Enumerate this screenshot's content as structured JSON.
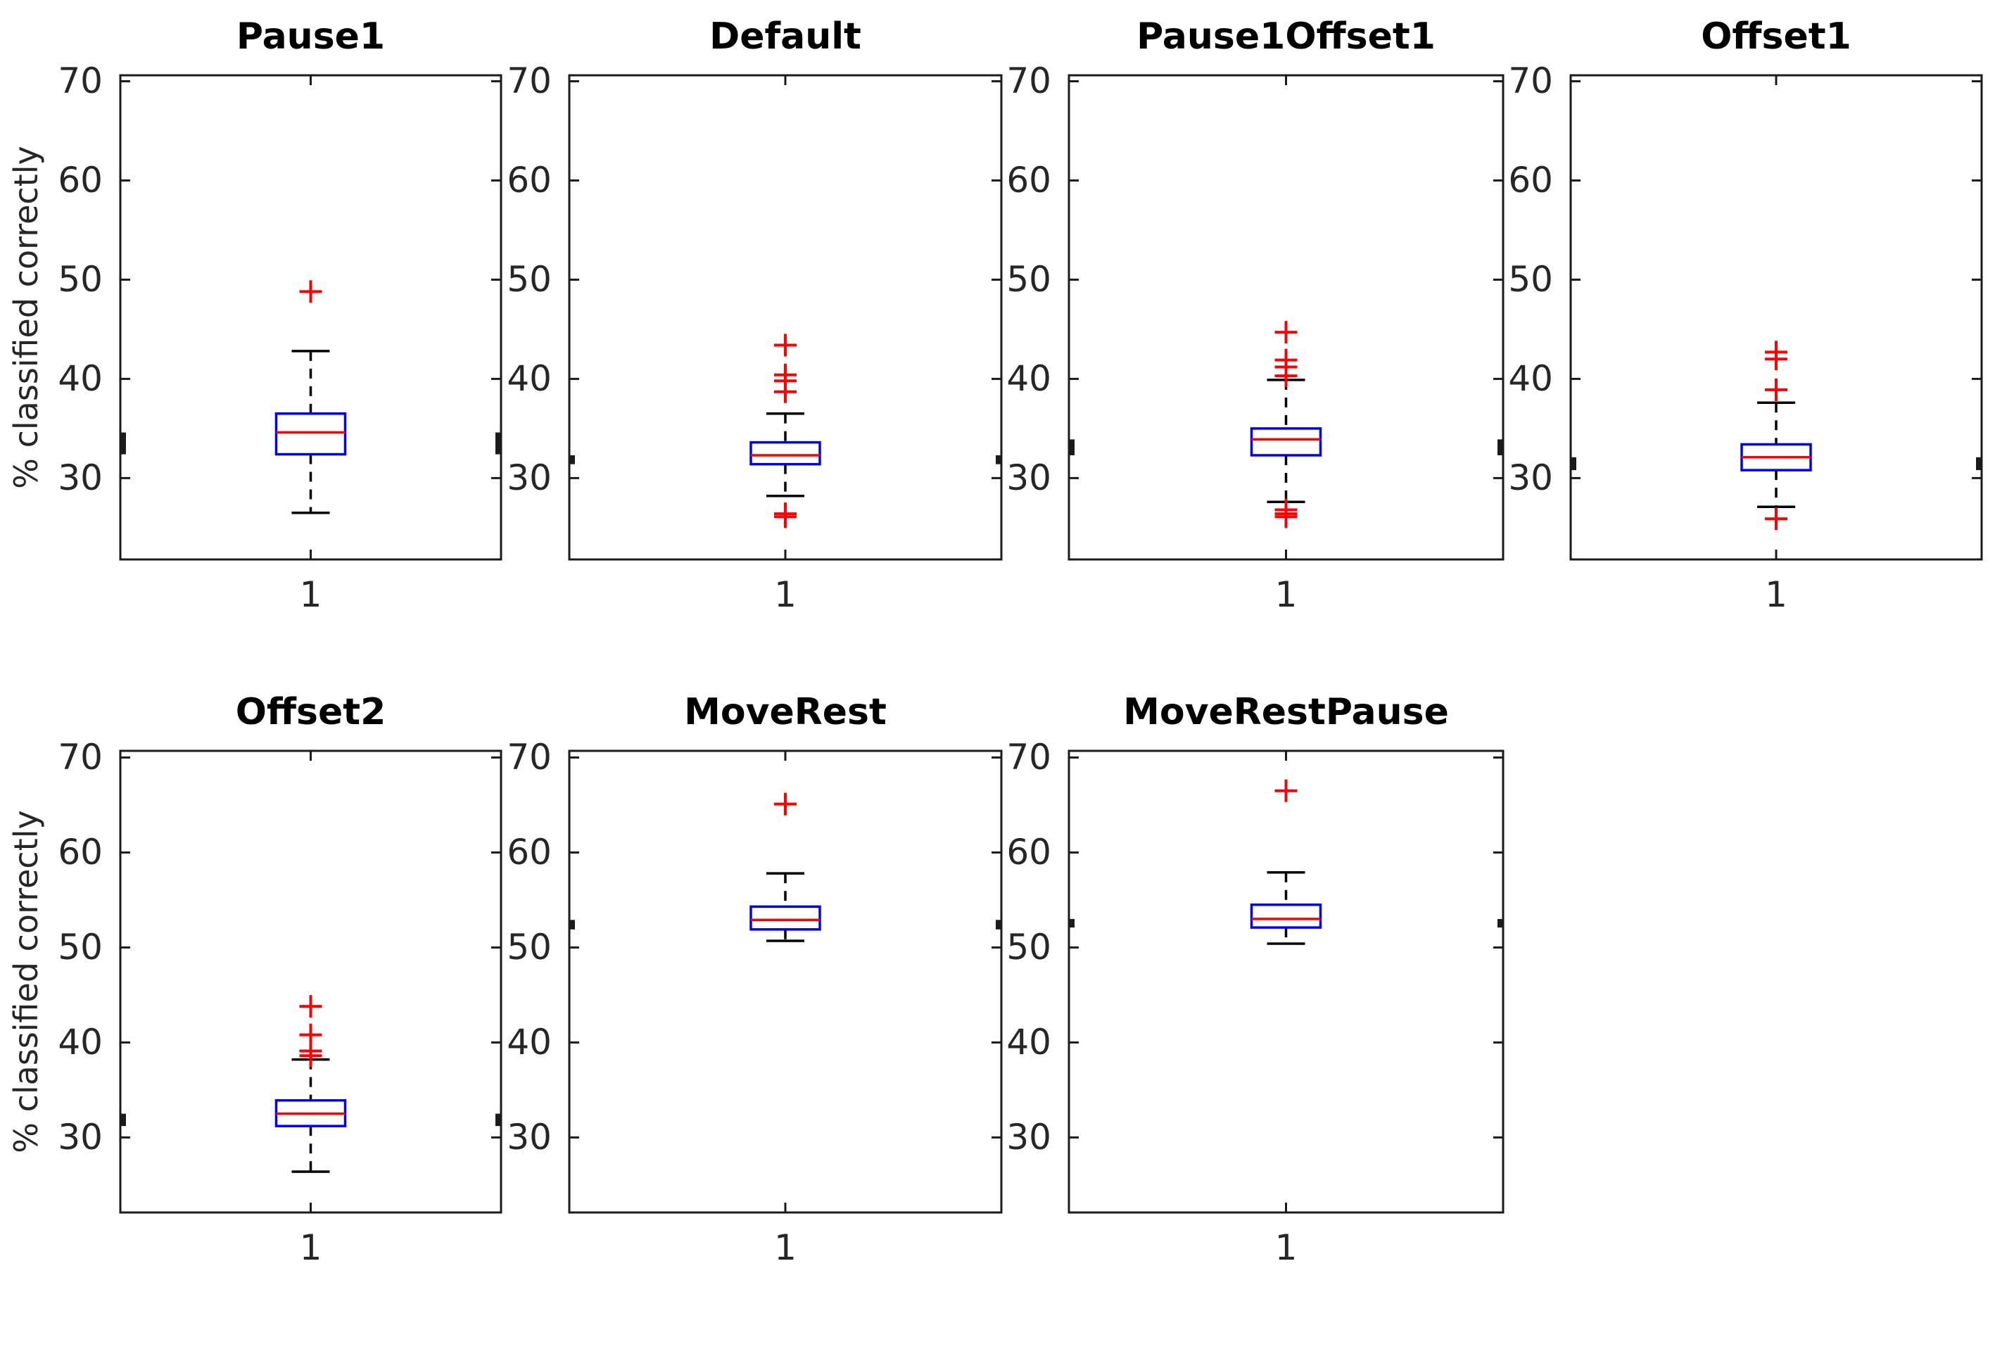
{
  "y_axis": {
    "label": "% classified correctly",
    "ticks": [
      "70",
      "60",
      "50",
      "40",
      "30"
    ],
    "tick_values": [
      70,
      60,
      50,
      40,
      30
    ],
    "x_tick_label": "1"
  },
  "colors": {
    "box": "#0000ff",
    "median": "#ff0000",
    "outlier": "#ff0000",
    "whisker": "#000000",
    "axis_line": "#1b1b1b",
    "text": "#262626",
    "title": "#000000",
    "background": "#ffffff"
  },
  "chart_data": [
    {
      "type": "boxplot",
      "title": "Pause1",
      "x_tick_label": "1",
      "ylabel": "% classified correctly",
      "ylim": [
        21.8,
        70.6
      ],
      "yticks": [
        70,
        60,
        50,
        40,
        30
      ],
      "median": 34.6,
      "q1": 32.4,
      "q3": 36.5,
      "whisker_low": 26.5,
      "whisker_high": 42.8,
      "outliers_high": [
        48.8
      ],
      "outliers_low": []
    },
    {
      "type": "boxplot",
      "title": "Default",
      "x_tick_label": "1",
      "ylabel": "",
      "ylim": [
        21.8,
        70.6
      ],
      "yticks": [
        70,
        60,
        50,
        40,
        30
      ],
      "median": 32.3,
      "q1": 31.4,
      "q3": 33.6,
      "whisker_low": 28.2,
      "whisker_high": 36.5,
      "outliers_high": [
        43.4,
        40.4,
        39.8,
        38.7
      ],
      "outliers_low": [
        26.4,
        26.1
      ]
    },
    {
      "type": "boxplot",
      "title": "Pause1Offset1",
      "x_tick_label": "1",
      "ylabel": "",
      "ylim": [
        21.8,
        70.6
      ],
      "yticks": [
        70,
        60,
        50,
        40,
        30
      ],
      "median": 33.9,
      "q1": 32.3,
      "q3": 35.0,
      "whisker_low": 27.6,
      "whisker_high": 39.9,
      "outliers_high": [
        44.7,
        41.9,
        41.2,
        40.3
      ],
      "outliers_low": [
        26.8,
        26.4,
        26.1
      ]
    },
    {
      "type": "boxplot",
      "title": "Offset1",
      "x_tick_label": "1",
      "ylabel": "",
      "ylim": [
        21.8,
        70.6
      ],
      "yticks": [
        70,
        60,
        50,
        40,
        30
      ],
      "median": 32.1,
      "q1": 30.8,
      "q3": 33.4,
      "whisker_low": 27.1,
      "whisker_high": 37.6,
      "outliers_high": [
        42.7,
        42.0,
        38.9
      ],
      "outliers_low": [
        25.9
      ]
    },
    {
      "type": "boxplot",
      "title": "Offset2",
      "x_tick_label": "1",
      "ylabel": "% classified correctly",
      "ylim": [
        22.1,
        70.7
      ],
      "yticks": [
        70,
        60,
        50,
        40,
        30
      ],
      "median": 32.5,
      "q1": 31.2,
      "q3": 33.9,
      "whisker_low": 26.4,
      "whisker_high": 38.2,
      "outliers_high": [
        43.8,
        40.8,
        39.1,
        38.6
      ],
      "outliers_low": []
    },
    {
      "type": "boxplot",
      "title": "MoveRest",
      "x_tick_label": "1",
      "ylabel": "",
      "ylim": [
        22.1,
        70.7
      ],
      "yticks": [
        70,
        60,
        50,
        40,
        30
      ],
      "median": 52.9,
      "q1": 51.9,
      "q3": 54.3,
      "whisker_low": 50.7,
      "whisker_high": 57.8,
      "outliers_high": [
        65.1
      ],
      "outliers_low": []
    },
    {
      "type": "boxplot",
      "title": "MoveRestPause",
      "x_tick_label": "1",
      "ylabel": "",
      "ylim": [
        22.1,
        70.7
      ],
      "yticks": [
        70,
        60,
        50,
        40,
        30
      ],
      "median": 53.0,
      "q1": 52.1,
      "q3": 54.5,
      "whisker_low": 50.4,
      "whisker_high": 57.9,
      "outliers_high": [
        66.5
      ],
      "outliers_low": []
    }
  ]
}
